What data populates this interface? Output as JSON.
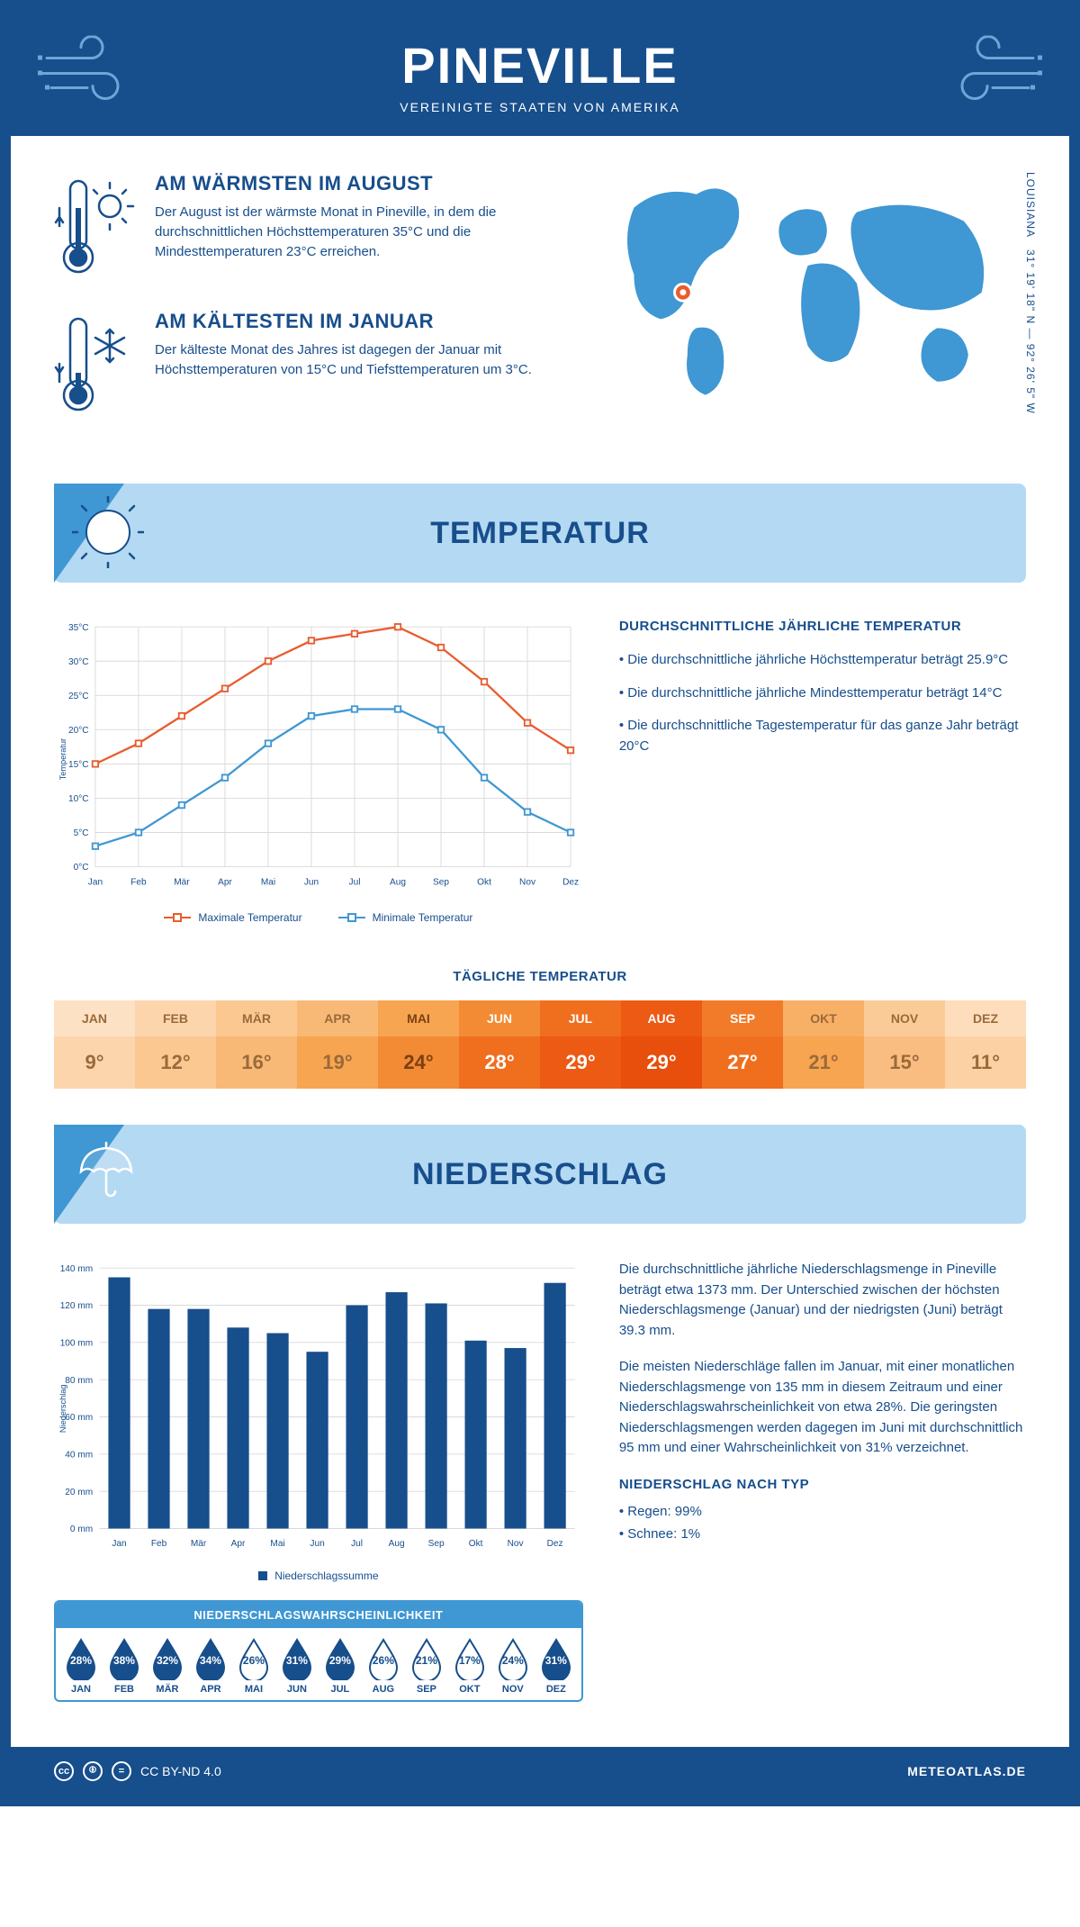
{
  "header": {
    "title": "PINEVILLE",
    "subtitle": "VEREINIGTE STAATEN VON AMERIKA"
  },
  "coords": {
    "line1": "LOUISIANA",
    "line2": "31° 19' 18\" N — 92° 26' 5\" W"
  },
  "warm": {
    "title": "AM WÄRMSTEN IM AUGUST",
    "text": "Der August ist der wärmste Monat in Pineville, in dem die durchschnittlichen Höchsttemperaturen 35°C und die Mindesttemperaturen 23°C erreichen."
  },
  "cold": {
    "title": "AM KÄLTESTEN IM JANUAR",
    "text": "Der kälteste Monat des Jahres ist dagegen der Januar mit Höchsttemperaturen von 15°C und Tiefsttemperaturen um 3°C."
  },
  "sections": {
    "temp": "TEMPERATUR",
    "precip": "NIEDERSCHLAG"
  },
  "months": [
    "Jan",
    "Feb",
    "Mär",
    "Apr",
    "Mai",
    "Jun",
    "Jul",
    "Aug",
    "Sep",
    "Okt",
    "Nov",
    "Dez"
  ],
  "months_upper": [
    "JAN",
    "FEB",
    "MÄR",
    "APR",
    "MAI",
    "JUN",
    "JUL",
    "AUG",
    "SEP",
    "OKT",
    "NOV",
    "DEZ"
  ],
  "temp_chart": {
    "type": "line",
    "y_axis_label": "Temperatur",
    "ylim": [
      0,
      35
    ],
    "ytick_step": 5,
    "series": {
      "max": {
        "label": "Maximale Temperatur",
        "color": "#e95c2e",
        "values": [
          15,
          18,
          22,
          26,
          30,
          33,
          34,
          35,
          32,
          27,
          21,
          17
        ]
      },
      "min": {
        "label": "Minimale Temperatur",
        "color": "#3f97d3",
        "values": [
          3,
          5,
          9,
          13,
          18,
          22,
          23,
          23,
          20,
          13,
          8,
          5
        ]
      }
    },
    "grid_color": "#d9d9d9",
    "background": "#ffffff"
  },
  "temp_text": {
    "heading": "DURCHSCHNITTLICHE JÄHRLICHE TEMPERATUR",
    "p1": "• Die durchschnittliche jährliche Höchsttemperatur beträgt 25.9°C",
    "p2": "• Die durchschnittliche jährliche Mindesttemperatur beträgt 14°C",
    "p3": "• Die durchschnittliche Tagestemperatur für das ganze Jahr beträgt 20°C"
  },
  "daily_temp": {
    "title": "TÄGLICHE TEMPERATUR",
    "values": [
      "9°",
      "12°",
      "16°",
      "19°",
      "24°",
      "28°",
      "29°",
      "29°",
      "27°",
      "21°",
      "15°",
      "11°"
    ],
    "colors_top": [
      "#fde1c4",
      "#fcd5ad",
      "#fbc892",
      "#f9b976",
      "#f7a551",
      "#f38b34",
      "#ef6f1f",
      "#ec5a14",
      "#f17b28",
      "#f8af66",
      "#fbcb97",
      "#fdddbb"
    ],
    "colors_bottom": [
      "#fcd5ad",
      "#fbc892",
      "#f9b976",
      "#f7a551",
      "#f38b34",
      "#ef6f1f",
      "#ec5a14",
      "#e84e0c",
      "#ef6f1f",
      "#f7a551",
      "#fabd81",
      "#fcd1a3"
    ],
    "text_colors": [
      "#9a6a3a",
      "#9a6a3a",
      "#9a6a3a",
      "#9a6a3a",
      "#7a4014",
      "#ffffff",
      "#ffffff",
      "#ffffff",
      "#ffffff",
      "#9a6a3a",
      "#9a6a3a",
      "#9a6a3a"
    ]
  },
  "precip_chart": {
    "type": "bar",
    "y_axis_label": "Niederschlag",
    "ylim": [
      0,
      140
    ],
    "ytick_step": 20,
    "values": [
      135,
      118,
      118,
      108,
      105,
      95,
      120,
      127,
      121,
      101,
      97,
      132
    ],
    "bar_color": "#174e8c",
    "grid_color": "#d9d9d9",
    "legend": "Niederschlagssumme"
  },
  "precip_text": {
    "p1": "Die durchschnittliche jährliche Niederschlagsmenge in Pineville beträgt etwa 1373 mm. Der Unterschied zwischen der höchsten Niederschlagsmenge (Januar) und der niedrigsten (Juni) beträgt 39.3 mm.",
    "p2": "Die meisten Niederschläge fallen im Januar, mit einer monatlichen Niederschlagsmenge von 135 mm in diesem Zeitraum und einer Niederschlagswahrscheinlichkeit von etwa 28%. Die geringsten Niederschlagsmengen werden dagegen im Juni mit durchschnittlich 95 mm und einer Wahrscheinlichkeit von 31% verzeichnet.",
    "type_heading": "NIEDERSCHLAG NACH TYP",
    "type1": "• Regen: 99%",
    "type2": "• Schnee: 1%"
  },
  "probability": {
    "title": "NIEDERSCHLAGSWAHRSCHEINLICHKEIT",
    "values": [
      "28%",
      "38%",
      "32%",
      "34%",
      "26%",
      "31%",
      "29%",
      "26%",
      "21%",
      "17%",
      "24%",
      "31%"
    ],
    "fill_threshold": 27,
    "fill_color": "#174e8c",
    "outline_color": "#174e8c"
  },
  "footer": {
    "license": "CC BY-ND 4.0",
    "site": "METEOATLAS.DE"
  },
  "colors": {
    "primary": "#174e8c",
    "accent": "#3f97d3",
    "banner_bg": "#b4d9f2"
  }
}
